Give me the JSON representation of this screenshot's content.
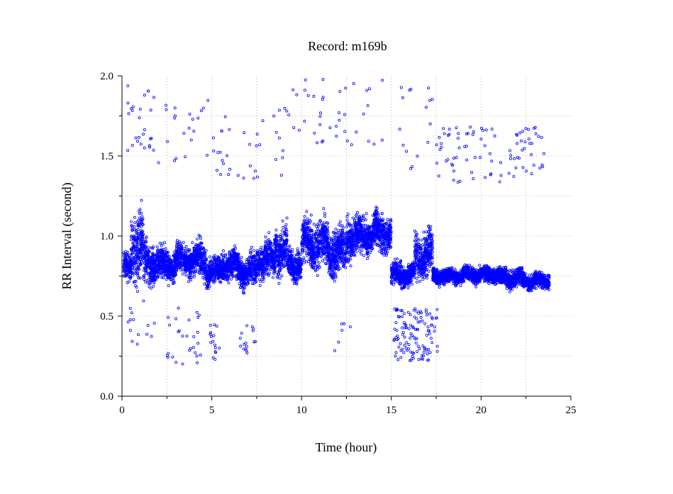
{
  "chart_data": {
    "type": "scatter",
    "title": "Record:  m169b",
    "xlabel": "Time (hour)",
    "ylabel": "RR Interval (second)",
    "xlim": [
      0,
      25
    ],
    "ylim": [
      0.0,
      2.0
    ],
    "x_ticks": [
      "0",
      "5",
      "10",
      "15",
      "20",
      "25"
    ],
    "y_ticks": [
      "0.0",
      "0.5",
      "1.0",
      "1.5",
      "2.0"
    ],
    "grid": true,
    "marker_color": "#0000ff",
    "segments": [
      {
        "x": [
          0.1,
          0.5
        ],
        "y_center": 0.8,
        "y_spread": 0.07
      },
      {
        "x": [
          0.5,
          1.2
        ],
        "y_center": 0.95,
        "y_spread": 0.18
      },
      {
        "x": [
          1.2,
          2.0
        ],
        "y_center": 0.83,
        "y_spread": 0.1
      },
      {
        "x": [
          2.0,
          3.0
        ],
        "y_center": 0.82,
        "y_spread": 0.08
      },
      {
        "x": [
          3.0,
          4.7
        ],
        "y_center": 0.85,
        "y_spread": 0.08
      },
      {
        "x": [
          4.7,
          5.5
        ],
        "y_center": 0.78,
        "y_spread": 0.07
      },
      {
        "x": [
          5.5,
          6.5
        ],
        "y_center": 0.82,
        "y_spread": 0.08
      },
      {
        "x": [
          6.5,
          7.5
        ],
        "y_center": 0.78,
        "y_spread": 0.08
      },
      {
        "x": [
          7.5,
          8.5
        ],
        "y_center": 0.85,
        "y_spread": 0.09
      },
      {
        "x": [
          8.5,
          9.2
        ],
        "y_center": 0.92,
        "y_spread": 0.12
      },
      {
        "x": [
          9.2,
          10.0
        ],
        "y_center": 0.82,
        "y_spread": 0.08
      },
      {
        "x": [
          10.0,
          11.5
        ],
        "y_center": 0.95,
        "y_spread": 0.12
      },
      {
        "x": [
          11.5,
          12.5
        ],
        "y_center": 0.9,
        "y_spread": 0.12
      },
      {
        "x": [
          12.5,
          14.0
        ],
        "y_center": 1.0,
        "y_spread": 0.1
      },
      {
        "x": [
          14.0,
          15.0
        ],
        "y_center": 1.02,
        "y_spread": 0.1
      },
      {
        "x": [
          15.0,
          16.3
        ],
        "y_center": 0.76,
        "y_spread": 0.06
      },
      {
        "x": [
          16.3,
          17.3
        ],
        "y_center": 0.88,
        "y_spread": 0.12
      },
      {
        "x": [
          17.3,
          19.0
        ],
        "y_center": 0.75,
        "y_spread": 0.04
      },
      {
        "x": [
          19.0,
          21.0
        ],
        "y_center": 0.76,
        "y_spread": 0.04
      },
      {
        "x": [
          21.0,
          22.3
        ],
        "y_center": 0.74,
        "y_spread": 0.05
      },
      {
        "x": [
          22.3,
          23.8
        ],
        "y_center": 0.72,
        "y_spread": 0.04
      }
    ],
    "outlier_clusters": [
      {
        "x": [
          0.3,
          1.5
        ],
        "y": [
          1.5,
          1.95
        ],
        "count": 20
      },
      {
        "x": [
          1.5,
          4.8
        ],
        "y": [
          1.45,
          1.87
        ],
        "count": 28
      },
      {
        "x": [
          5.0,
          9.5
        ],
        "y": [
          1.35,
          1.8
        ],
        "count": 38
      },
      {
        "x": [
          9.0,
          14.5
        ],
        "y": [
          1.55,
          2.0
        ],
        "count": 40
      },
      {
        "x": [
          15.3,
          17.5
        ],
        "y": [
          1.42,
          1.98
        ],
        "count": 16
      },
      {
        "x": [
          17.5,
          23.5
        ],
        "y": [
          1.33,
          1.68
        ],
        "count": 90
      },
      {
        "x": [
          0.3,
          2.0
        ],
        "y": [
          0.28,
          0.6
        ],
        "count": 14
      },
      {
        "x": [
          2.5,
          4.5
        ],
        "y": [
          0.2,
          0.55
        ],
        "count": 28
      },
      {
        "x": [
          4.9,
          5.5
        ],
        "y": [
          0.22,
          0.45
        ],
        "count": 16
      },
      {
        "x": [
          6.5,
          7.5
        ],
        "y": [
          0.25,
          0.45
        ],
        "count": 16
      },
      {
        "x": [
          11.8,
          12.8
        ],
        "y": [
          0.28,
          0.55
        ],
        "count": 6
      },
      {
        "x": [
          15.1,
          17.6
        ],
        "y": [
          0.22,
          0.55
        ],
        "count": 120
      }
    ]
  }
}
